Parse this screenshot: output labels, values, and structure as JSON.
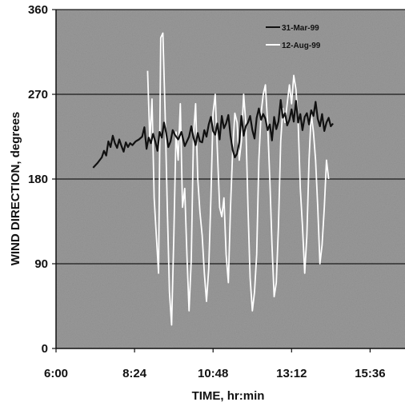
{
  "chart_data": {
    "type": "line",
    "xlabel": "TIME, hr:min",
    "ylabel": "WIND DIRECTION, degrees",
    "x_tick_labels": [
      "6:00",
      "8:24",
      "10:48",
      "13:12",
      "15:36"
    ],
    "x_ticks_minutes": [
      360,
      504,
      648,
      792,
      936
    ],
    "xlim_minutes": [
      360,
      1000
    ],
    "y_ticks": [
      0,
      90,
      180,
      270,
      360
    ],
    "ylim": [
      0,
      360
    ],
    "grid": "horizontal",
    "legend_position": "top-right",
    "background": "#9a9a9a",
    "series": [
      {
        "name": "31-Mar-99",
        "color": "#111111",
        "x": [
          428,
          436,
          444,
          448,
          452,
          456,
          460,
          464,
          468,
          472,
          476,
          480,
          484,
          488,
          492,
          496,
          500,
          506,
          512,
          518,
          522,
          526,
          530,
          534,
          538,
          542,
          546,
          550,
          554,
          558,
          562,
          566,
          570,
          574,
          578,
          584,
          590,
          596,
          600,
          604,
          608,
          612,
          616,
          620,
          624,
          628,
          632,
          636,
          640,
          644,
          648,
          652,
          656,
          660,
          664,
          668,
          672,
          676,
          680,
          684,
          688,
          692,
          696,
          700,
          704,
          708,
          712,
          716,
          720,
          724,
          728,
          732,
          736,
          740,
          744,
          748,
          752,
          756,
          760,
          764,
          768,
          772,
          776,
          780,
          784,
          788,
          792,
          796,
          800,
          804,
          808,
          812,
          816,
          820,
          824,
          828,
          832,
          836,
          840,
          844,
          848,
          852,
          856,
          860,
          864,
          868
        ],
        "values": [
          192,
          197,
          203,
          210,
          205,
          220,
          214,
          226,
          218,
          213,
          222,
          215,
          209,
          219,
          214,
          218,
          216,
          220,
          222,
          225,
          235,
          212,
          224,
          218,
          228,
          220,
          210,
          230,
          224,
          240,
          229,
          214,
          220,
          232,
          227,
          222,
          230,
          215,
          220,
          225,
          236,
          224,
          216,
          229,
          220,
          219,
          232,
          225,
          238,
          246,
          231,
          227,
          239,
          222,
          247,
          234,
          239,
          248,
          226,
          211,
          203,
          207,
          219,
          247,
          226,
          236,
          240,
          247,
          232,
          223,
          245,
          255,
          243,
          249,
          244,
          232,
          238,
          221,
          246,
          233,
          241,
          264,
          245,
          250,
          237,
          243,
          254,
          241,
          263,
          240,
          249,
          232,
          246,
          250,
          238,
          253,
          247,
          262,
          244,
          236,
          249,
          231,
          240,
          245,
          236,
          239
        ]
      },
      {
        "name": "12-Aug-99",
        "color": "#ffffff",
        "x": [
          528,
          532,
          536,
          540,
          544,
          548,
          552,
          556,
          560,
          564,
          568,
          572,
          576,
          580,
          584,
          588,
          592,
          596,
          600,
          604,
          608,
          612,
          616,
          620,
          624,
          628,
          632,
          636,
          640,
          644,
          648,
          652,
          656,
          660,
          664,
          668,
          672,
          676,
          680,
          684,
          688,
          692,
          696,
          700,
          704,
          708,
          712,
          716,
          720,
          724,
          728,
          732,
          736,
          740,
          744,
          748,
          752,
          756,
          760,
          764,
          768,
          772,
          776,
          780,
          784,
          788,
          792,
          796,
          800,
          804,
          808,
          812,
          816,
          820,
          824,
          828,
          832,
          836,
          840,
          844,
          848,
          852,
          856,
          860
        ],
        "values": [
          295,
          220,
          265,
          160,
          120,
          80,
          330,
          335,
          250,
          150,
          60,
          25,
          120,
          230,
          200,
          260,
          150,
          170,
          100,
          40,
          95,
          225,
          260,
          180,
          145,
          120,
          80,
          50,
          85,
          160,
          250,
          270,
          210,
          150,
          140,
          160,
          100,
          70,
          150,
          210,
          250,
          240,
          200,
          220,
          270,
          240,
          150,
          75,
          40,
          60,
          100,
          200,
          250,
          270,
          280,
          240,
          180,
          110,
          55,
          70,
          130,
          220,
          255,
          240,
          260,
          280,
          260,
          290,
          275,
          240,
          170,
          130,
          80,
          120,
          200,
          250,
          230,
          200,
          150,
          90,
          110,
          150,
          200,
          180
        ]
      }
    ]
  }
}
